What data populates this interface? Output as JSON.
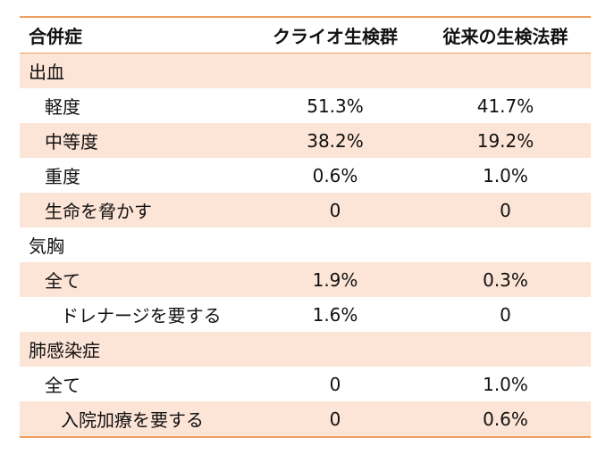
{
  "table": {
    "headers": [
      "合併症",
      "クライオ生検群",
      "従来の生検法群"
    ],
    "rows": [
      {
        "label": "出血",
        "col1": "",
        "col2": "",
        "level": 0,
        "shaded": true
      },
      {
        "label": "軽度",
        "col1": "51.3%",
        "col2": "41.7%",
        "level": 1,
        "shaded": false
      },
      {
        "label": "中等度",
        "col1": "38.2%",
        "col2": "19.2%",
        "level": 1,
        "shaded": true
      },
      {
        "label": "重度",
        "col1": "0.6%",
        "col2": "1.0%",
        "level": 1,
        "shaded": false
      },
      {
        "label": "生命を脅かす",
        "col1": "0",
        "col2": "0",
        "level": 1,
        "shaded": true
      },
      {
        "label": "気胸",
        "col1": "",
        "col2": "",
        "level": 0,
        "shaded": false
      },
      {
        "label": "全て",
        "col1": "1.9%",
        "col2": "0.3%",
        "level": 1,
        "shaded": true
      },
      {
        "label": "ドレナージを要する",
        "col1": "1.6%",
        "col2": "0",
        "level": 2,
        "shaded": false
      },
      {
        "label": "肺感染症",
        "col1": "",
        "col2": "",
        "level": 0,
        "shaded": true
      },
      {
        "label": "全て",
        "col1": "0",
        "col2": "1.0%",
        "level": 1,
        "shaded": false
      },
      {
        "label": "入院加療を要する",
        "col1": "0",
        "col2": "0.6%",
        "level": 2,
        "shaded": true
      }
    ]
  },
  "colors": {
    "border": "#f0a060",
    "shade": "#fce4d6"
  }
}
